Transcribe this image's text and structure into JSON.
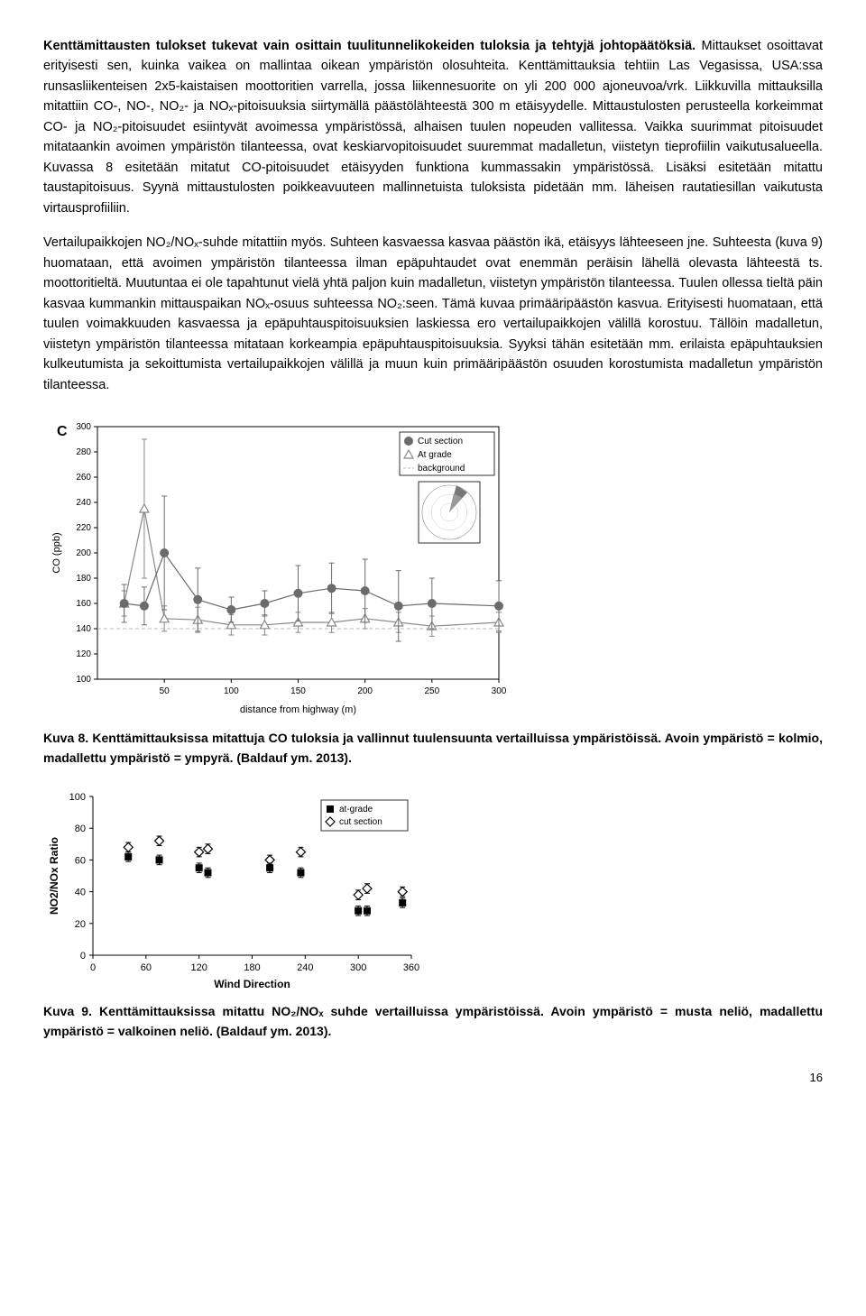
{
  "para1_lead": "Kenttämittausten tulokset tukevat vain osittain tuulitunnelikokeiden tuloksia ja tehtyjä johtopäätöksiä.",
  "para1_tail": " Mittaukset osoittavat erityisesti sen, kuinka vaikea on mallintaa oikean ympäristön olosuhteita. Kenttämittauksia tehtiin Las Vegasissa, USA:ssa runsasliikenteisen 2x5-kaistaisen moottoritien varrella, jossa liikennesuorite on yli 200 000 ajoneuvoa/vrk. Liikkuvilla mittauksilla mitattiin CO-, NO-, NO₂- ja NOₓ-pitoisuuksia siirtymällä päästölähteestä 300 m etäisyydelle. Mittaustulosten perusteella korkeimmat CO- ja NO₂-pitoisuudet esiintyvät avoimessa ympäristössä, alhaisen tuulen nopeuden vallitessa. Vaikka suurimmat pitoisuudet mitataankin avoimen ympäristön tilanteessa, ovat keskiarvopitoisuudet suuremmat madalletun, viistetyn tieprofiilin vaikutusalueella. Kuvassa 8 esitetään mitatut CO-pitoisuudet etäisyyden funktiona kummassakin ympäristössä. Lisäksi esitetään mitattu taustapitoisuus. Syynä mittaustulosten poikkeavuuteen mallinnetuista tuloksista pidetään mm. läheisen rautatiesillan vaikutusta virtausprofiiliin.",
  "para2": "Vertailupaikkojen NO₂/NOₓ-suhde mitattiin myös. Suhteen kasvaessa kasvaa päästön ikä, etäisyys lähteeseen jne. Suhteesta (kuva 9) huomataan, että avoimen ympäristön tilanteessa ilman epäpuhtaudet ovat enemmän peräisin lähellä olevasta lähteestä ts. moottoritieltä. Muutuntaa ei ole tapahtunut vielä yhtä paljon kuin madalletun, viistetyn ympäristön tilanteessa. Tuulen ollessa tieltä päin kasvaa kummankin mittauspaikan NOₓ-osuus suhteessa NO₂:seen. Tämä kuvaa primääripäästön kasvua. Erityisesti huomataan, että tuulen voimakkuuden kasvaessa ja epäpuhtauspitoisuuksien laskiessa ero vertailupaikkojen välillä korostuu. Tällöin madalletun, viistetyn ympäristön tilanteessa mitataan korkeampia epäpuhtauspitoisuuksia. Syyksi tähän esitetään mm. erilaista epäpuhtauksien kulkeutumista ja sekoittumista vertailupaikkojen välillä ja muun kuin primääripäästön osuuden korostumista madalletun ympäristön tilanteessa.",
  "caption8": "Kuva 8. Kenttämittauksissa mitattuja CO tuloksia ja vallinnut tuulensuunta vertailluissa ympäristöissä. Avoin ympäristö = kolmio, madallettu ympäristö = ympyrä. (Baldauf ym. 2013).",
  "caption9": "Kuva 9. Kenttämittauksissa mitattu NO₂/NOₓ suhde vertailluissa ympäristöissä. Avoin ympäristö = musta neliö, madallettu ympäristö = valkoinen neliö. (Baldauf ym. 2013).",
  "pageNum": "16",
  "chart8": {
    "type": "line",
    "plot_label": "C",
    "xlabel": "distance from highway (m)",
    "ylabel": "CO (ppb)",
    "xlim": [
      0,
      300
    ],
    "ylim": [
      100,
      300
    ],
    "xticks": [
      50,
      100,
      150,
      200,
      250,
      300
    ],
    "yticks": [
      100,
      120,
      140,
      160,
      180,
      200,
      220,
      240,
      260,
      280,
      300
    ],
    "background_line_y": 140,
    "legend": [
      "Cut section",
      "At grade",
      "background"
    ],
    "series": {
      "cut_section": {
        "marker": "circle-filled",
        "color": "#6b6b6b",
        "x": [
          20,
          35,
          50,
          75,
          100,
          125,
          150,
          175,
          200,
          225,
          250,
          300
        ],
        "y": [
          160,
          158,
          200,
          163,
          155,
          160,
          168,
          172,
          170,
          158,
          160,
          158
        ],
        "err": [
          15,
          15,
          45,
          25,
          10,
          10,
          22,
          20,
          25,
          28,
          20,
          20
        ]
      },
      "at_grade": {
        "marker": "triangle-open",
        "color": "#888888",
        "x": [
          20,
          35,
          50,
          75,
          100,
          125,
          150,
          175,
          200,
          225,
          250,
          300
        ],
        "y": [
          160,
          235,
          148,
          147,
          143,
          143,
          145,
          145,
          148,
          145,
          142,
          145
        ],
        "err": [
          10,
          55,
          10,
          10,
          8,
          8,
          8,
          8,
          8,
          8,
          8,
          8
        ]
      }
    },
    "colors": {
      "axis": "#000",
      "grid": "#ddd",
      "text": "#000",
      "bg_line": "#bbb"
    },
    "fontsize": {
      "axis_label": 11,
      "tick": 10,
      "legend": 10,
      "plot_label": 16
    }
  },
  "chart9": {
    "type": "scatter",
    "xlabel": "Wind Direction",
    "ylabel": "NO2/NOx Ratio",
    "xlim": [
      0,
      360
    ],
    "ylim": [
      0,
      100
    ],
    "xticks": [
      0,
      60,
      120,
      180,
      240,
      300,
      360
    ],
    "yticks": [
      0,
      20,
      40,
      60,
      80,
      100
    ],
    "legend": [
      "at-grade",
      "cut section"
    ],
    "series": {
      "at_grade": {
        "marker": "square-filled",
        "color": "#000000",
        "x": [
          40,
          75,
          120,
          130,
          200,
          235,
          300,
          310,
          350
        ],
        "y": [
          62,
          60,
          55,
          52,
          55,
          52,
          28,
          28,
          33
        ],
        "err": [
          3,
          3,
          3,
          3,
          3,
          3,
          3,
          3,
          3
        ]
      },
      "cut_section": {
        "marker": "square-open",
        "color": "#000000",
        "x": [
          40,
          75,
          120,
          130,
          200,
          235,
          300,
          310,
          350
        ],
        "y": [
          68,
          72,
          65,
          67,
          60,
          65,
          38,
          42,
          40
        ],
        "err": [
          3,
          3,
          3,
          3,
          3,
          3,
          3,
          3,
          3
        ]
      }
    },
    "colors": {
      "axis": "#000",
      "text": "#000"
    },
    "fontsize": {
      "axis_label": 12,
      "tick": 11,
      "legend": 10
    }
  }
}
